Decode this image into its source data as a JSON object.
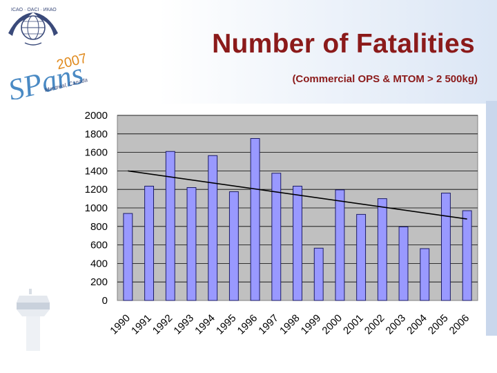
{
  "slide": {
    "title": "Number of Fatalities",
    "subtitle": "(Commercial OPS & MTOM > 2 500kg)"
  },
  "logo": {
    "org_text": "ICAO · OACI · ИКАО",
    "event_word": "SPans",
    "year": "2007",
    "city": "Montréal, Canada"
  },
  "colors": {
    "title": "#8b1a1a",
    "bar_fill": "#9999ff",
    "bar_stroke": "#1a1a66",
    "plot_bg": "#c0c0c0",
    "trend": "#000000"
  },
  "chart_data": {
    "type": "bar",
    "categories": [
      "1990",
      "1991",
      "1992",
      "1993",
      "1994",
      "1995",
      "1996",
      "1997",
      "1998",
      "1999",
      "2000",
      "2001",
      "2002",
      "2003",
      "2004",
      "2005",
      "2006"
    ],
    "values": [
      940,
      1235,
      1610,
      1220,
      1565,
      1175,
      1750,
      1375,
      1235,
      565,
      1195,
      930,
      1100,
      795,
      560,
      1160,
      970
    ],
    "trendline": {
      "start": 1400,
      "end": 880
    },
    "ylim": [
      0,
      2000
    ],
    "yticks": [
      0,
      200,
      400,
      600,
      800,
      1000,
      1200,
      1400,
      1600,
      1800,
      2000
    ],
    "grid": true,
    "title": "",
    "xlabel": "",
    "ylabel": ""
  }
}
